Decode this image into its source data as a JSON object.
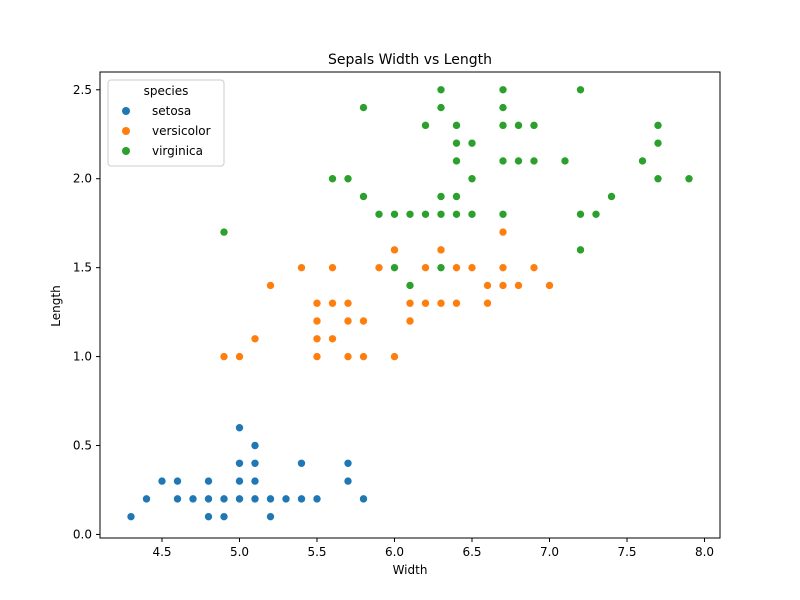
{
  "chart_data": {
    "type": "scatter",
    "title": "Sepals Width vs Length",
    "xlabel": "Width",
    "ylabel": "Length",
    "xlim": [
      4.1,
      8.1
    ],
    "ylim": [
      -0.02,
      2.6
    ],
    "x_ticks": [
      "4.5",
      "5.0",
      "5.5",
      "6.0",
      "6.5",
      "7.0",
      "7.5",
      "8.0"
    ],
    "y_ticks": [
      "0.0",
      "0.5",
      "1.0",
      "1.5",
      "2.0",
      "2.5"
    ],
    "grid": false,
    "legend": {
      "title": "species",
      "position": "top-left"
    },
    "series": [
      {
        "name": "setosa",
        "color": "#1f77b4",
        "points": [
          [
            4.3,
            0.1
          ],
          [
            4.4,
            0.2
          ],
          [
            4.5,
            0.3
          ],
          [
            4.6,
            0.3
          ],
          [
            4.6,
            0.2
          ],
          [
            4.7,
            0.2
          ],
          [
            4.8,
            0.3
          ],
          [
            4.8,
            0.2
          ],
          [
            4.8,
            0.1
          ],
          [
            4.9,
            0.2
          ],
          [
            4.9,
            0.1
          ],
          [
            5.0,
            0.6
          ],
          [
            5.0,
            0.4
          ],
          [
            5.0,
            0.3
          ],
          [
            5.0,
            0.2
          ],
          [
            5.1,
            0.5
          ],
          [
            5.1,
            0.4
          ],
          [
            5.1,
            0.3
          ],
          [
            5.1,
            0.2
          ],
          [
            5.2,
            0.2
          ],
          [
            5.2,
            0.1
          ],
          [
            5.3,
            0.2
          ],
          [
            5.4,
            0.4
          ],
          [
            5.4,
            0.2
          ],
          [
            5.5,
            0.2
          ],
          [
            5.7,
            0.4
          ],
          [
            5.7,
            0.3
          ],
          [
            5.8,
            0.2
          ]
        ]
      },
      {
        "name": "versicolor",
        "color": "#ff7f0e",
        "points": [
          [
            4.9,
            1.0
          ],
          [
            5.0,
            1.0
          ],
          [
            5.1,
            1.1
          ],
          [
            5.2,
            1.4
          ],
          [
            5.4,
            1.5
          ],
          [
            5.5,
            1.3
          ],
          [
            5.5,
            1.2
          ],
          [
            5.5,
            1.1
          ],
          [
            5.5,
            1.0
          ],
          [
            5.6,
            1.5
          ],
          [
            5.6,
            1.3
          ],
          [
            5.6,
            1.1
          ],
          [
            5.7,
            1.3
          ],
          [
            5.7,
            1.2
          ],
          [
            5.7,
            1.0
          ],
          [
            5.8,
            1.2
          ],
          [
            5.8,
            1.0
          ],
          [
            5.9,
            1.5
          ],
          [
            6.0,
            1.6
          ],
          [
            6.0,
            1.5
          ],
          [
            6.0,
            1.0
          ],
          [
            6.1,
            1.4
          ],
          [
            6.1,
            1.3
          ],
          [
            6.1,
            1.2
          ],
          [
            6.2,
            1.5
          ],
          [
            6.2,
            1.3
          ],
          [
            6.3,
            1.6
          ],
          [
            6.3,
            1.5
          ],
          [
            6.3,
            1.3
          ],
          [
            6.4,
            1.5
          ],
          [
            6.4,
            1.3
          ],
          [
            6.5,
            1.5
          ],
          [
            6.6,
            1.4
          ],
          [
            6.6,
            1.3
          ],
          [
            6.7,
            1.7
          ],
          [
            6.7,
            1.5
          ],
          [
            6.7,
            1.4
          ],
          [
            6.8,
            1.4
          ],
          [
            6.9,
            1.5
          ],
          [
            7.0,
            1.4
          ]
        ]
      },
      {
        "name": "virginica",
        "color": "#2ca02c",
        "points": [
          [
            4.9,
            1.7
          ],
          [
            5.6,
            2.0
          ],
          [
            5.7,
            2.0
          ],
          [
            5.8,
            2.4
          ],
          [
            5.8,
            1.9
          ],
          [
            5.9,
            1.8
          ],
          [
            6.0,
            1.8
          ],
          [
            6.0,
            1.5
          ],
          [
            6.1,
            1.8
          ],
          [
            6.1,
            1.4
          ],
          [
            6.2,
            2.3
          ],
          [
            6.2,
            1.8
          ],
          [
            6.3,
            2.5
          ],
          [
            6.3,
            2.4
          ],
          [
            6.3,
            1.9
          ],
          [
            6.3,
            1.8
          ],
          [
            6.3,
            1.5
          ],
          [
            6.4,
            2.3
          ],
          [
            6.4,
            2.2
          ],
          [
            6.4,
            2.1
          ],
          [
            6.4,
            1.9
          ],
          [
            6.4,
            1.8
          ],
          [
            6.5,
            2.2
          ],
          [
            6.5,
            2.0
          ],
          [
            6.5,
            1.8
          ],
          [
            6.7,
            2.5
          ],
          [
            6.7,
            2.4
          ],
          [
            6.7,
            2.3
          ],
          [
            6.7,
            2.1
          ],
          [
            6.7,
            1.8
          ],
          [
            6.8,
            2.3
          ],
          [
            6.8,
            2.1
          ],
          [
            6.9,
            2.3
          ],
          [
            6.9,
            2.1
          ],
          [
            7.1,
            2.1
          ],
          [
            7.2,
            2.5
          ],
          [
            7.2,
            1.8
          ],
          [
            7.2,
            1.6
          ],
          [
            7.3,
            1.8
          ],
          [
            7.4,
            1.9
          ],
          [
            7.6,
            2.1
          ],
          [
            7.7,
            2.3
          ],
          [
            7.7,
            2.2
          ],
          [
            7.7,
            2.0
          ],
          [
            7.9,
            2.0
          ]
        ]
      }
    ]
  }
}
